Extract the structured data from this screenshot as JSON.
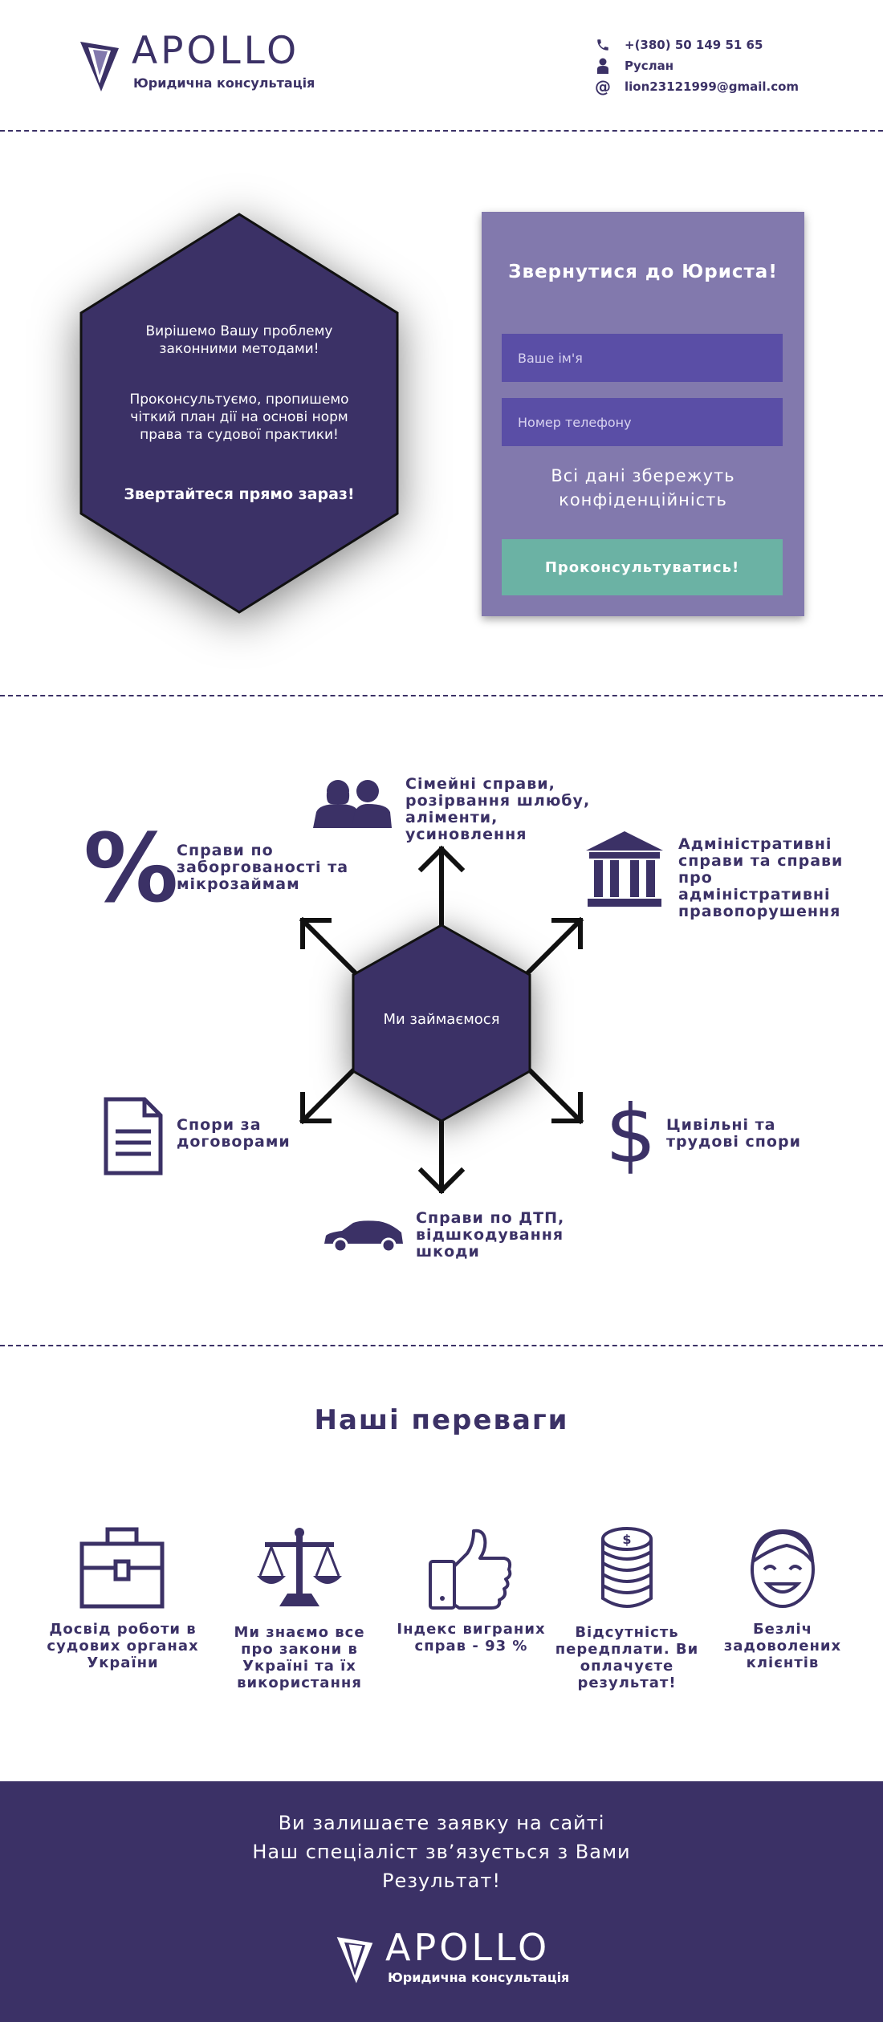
{
  "header": {
    "brand": "APOLLO",
    "tagline": "Юридична консультація",
    "phone": "+(380) 50 149 51 65",
    "contact_name": "Руслан",
    "email": "lion23121999@gmail.com"
  },
  "hero": {
    "line1": "Вирішемо Вашу проблему законними методами!",
    "line2": "Проконсультуємо, пропишемо чіткий план дії на основі норм права та судової практики!",
    "line3": "Звертайтеся прямо зараз!"
  },
  "form": {
    "title": "Звернутися до Юриста!",
    "name_placeholder": "Ваше ім'я",
    "phone_placeholder": "Номер телефону",
    "note": "Всі дані збережуть конфіденційність",
    "submit_label": "Проконсультуватись!"
  },
  "services": {
    "center_label": "Ми займаємося",
    "family": "Сімейні справи, розірвання шлюбу, аліменти, усиновлення",
    "debts": "Справи по заборгованості та мікрозаймам",
    "administrative": "Адміністративні справи та справи про адміністративні правопорушення",
    "contracts": "Спори за договорами",
    "civil": "Цивільні та трудові спори",
    "traffic": "Справи по ДТП, відшкодування шкоди"
  },
  "advantages": {
    "title": "Наші переваги",
    "items": [
      {
        "icon": "briefcase-icon",
        "text": "Досвід роботи в судових органах України"
      },
      {
        "icon": "scales-icon",
        "text": "Ми знаємо все про закони в Україні та їх використання"
      },
      {
        "icon": "thumbs-up-icon",
        "text": "Індекс виграних справ - 93 %"
      },
      {
        "icon": "coins-icon",
        "text": "Відсутність передплати. Ви оплачуєте результат!"
      },
      {
        "icon": "happy-client-icon",
        "text": "Безліч задоволених клієнтів"
      }
    ]
  },
  "footer": {
    "line1": "Ви залишаєте заявку на сайті",
    "line2": "Наш спеціаліст зв’язується з Вами",
    "line3": "Результат!",
    "brand": "APOLLO",
    "tagline": "Юридична консультація"
  },
  "colors": {
    "primary": "#3b3166",
    "form_bg": "#8279ad",
    "input_bg": "#5a4ea6",
    "button": "#6bb2a4"
  }
}
